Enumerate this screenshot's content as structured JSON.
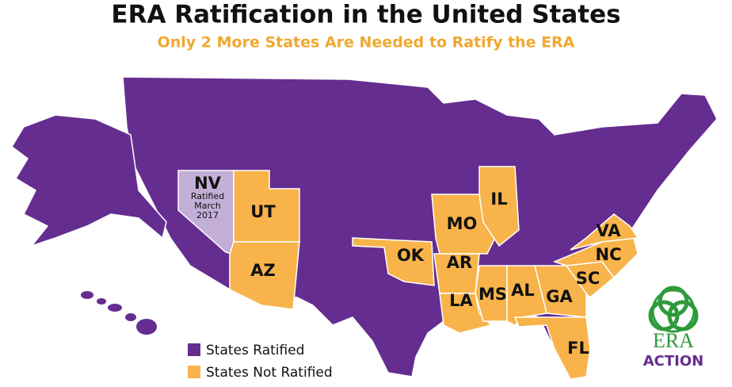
{
  "title": "ERA Ratification in the United States",
  "subtitle": "Only 2 More States Are Needed to Ratify the ERA",
  "colors": {
    "ratified": "#652d90",
    "not_ratified": "#f8b34a",
    "recent": "#c2aed6"
  },
  "states": [
    {
      "label": "NV",
      "note": [
        "Ratified",
        "March",
        "2017"
      ]
    },
    {
      "label": "UT"
    },
    {
      "label": "AZ"
    },
    {
      "label": "OK"
    },
    {
      "label": "MO"
    },
    {
      "label": "IL"
    },
    {
      "label": "AR"
    },
    {
      "label": "LA"
    },
    {
      "label": "MS"
    },
    {
      "label": "AL"
    },
    {
      "label": "GA"
    },
    {
      "label": "SC"
    },
    {
      "label": "NC"
    },
    {
      "label": "VA"
    },
    {
      "label": "FL"
    }
  ],
  "legend": [
    {
      "label": "States Ratified",
      "color": "#652d90"
    },
    {
      "label": "States Not Ratified",
      "color": "#f8b34a"
    }
  ],
  "logo": {
    "top": "ERA",
    "bottom": "ACTION"
  }
}
